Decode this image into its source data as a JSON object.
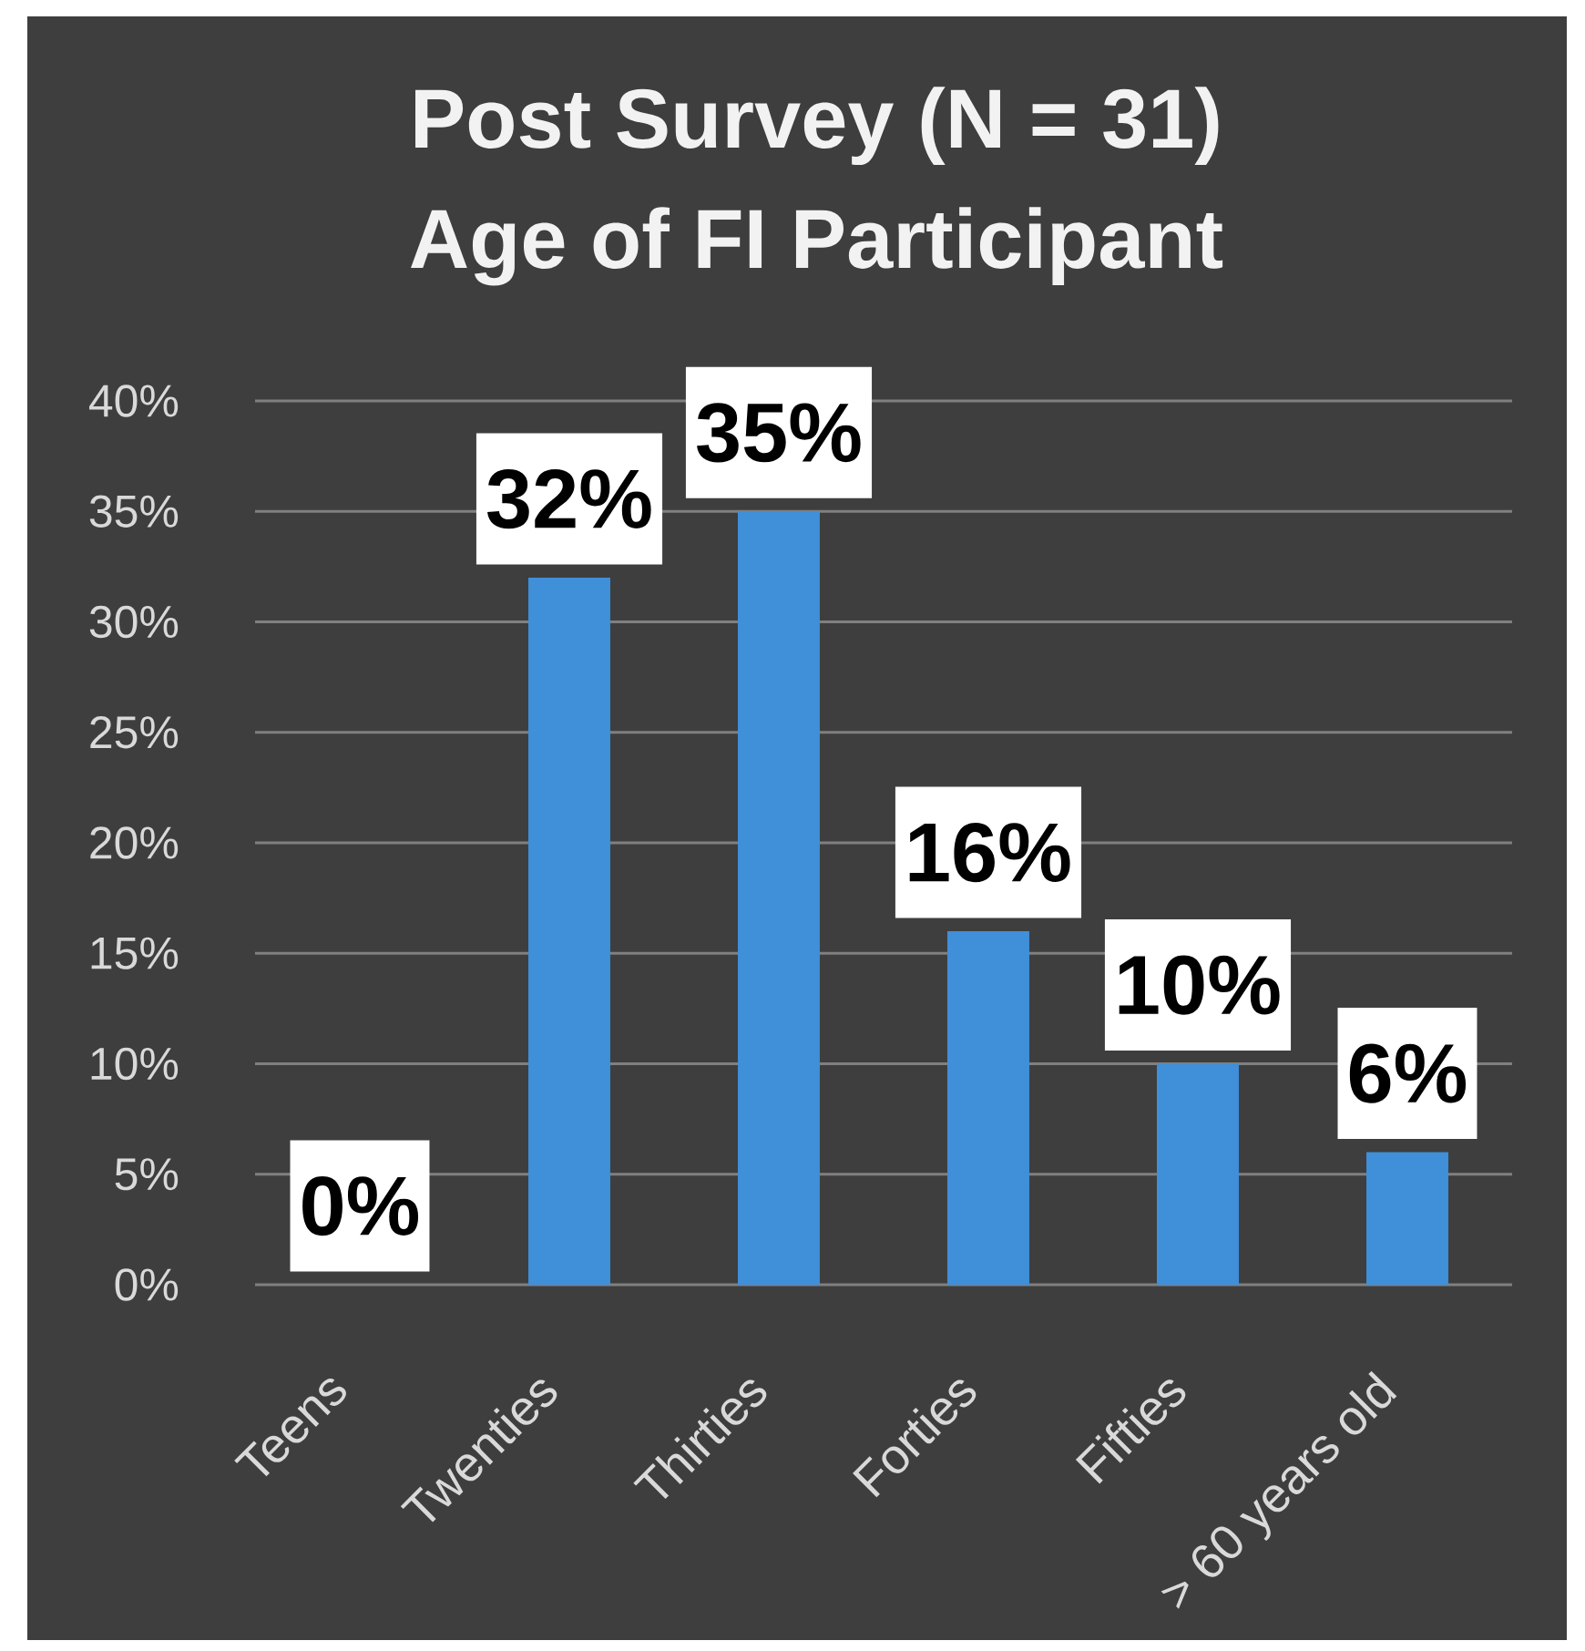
{
  "chart_data": {
    "type": "bar",
    "title": "Post Survey (N = 31)",
    "subtitle": "Age of FI  Participant",
    "categories": [
      "Teens",
      "Twenties",
      "Thirties",
      "Forties",
      "Fifties",
      "> 60 years old"
    ],
    "values": [
      0,
      32,
      35,
      16,
      10,
      6
    ],
    "value_labels": [
      "0%",
      "32%",
      "35%",
      "16%",
      "10%",
      "6%"
    ],
    "color": "#3f8fd9",
    "ylim": [
      0,
      40
    ],
    "yticks": [
      {
        "value": 0,
        "label": "0%"
      },
      {
        "value": 5,
        "label": "5%"
      },
      {
        "value": 10,
        "label": "10%"
      },
      {
        "value": 15,
        "label": "15%"
      },
      {
        "value": 20,
        "label": "20%"
      },
      {
        "value": 25,
        "label": "25%"
      },
      {
        "value": 30,
        "label": "30%"
      },
      {
        "value": 35,
        "label": "35%"
      },
      {
        "value": 40,
        "label": "40%"
      }
    ],
    "grid": "y"
  }
}
